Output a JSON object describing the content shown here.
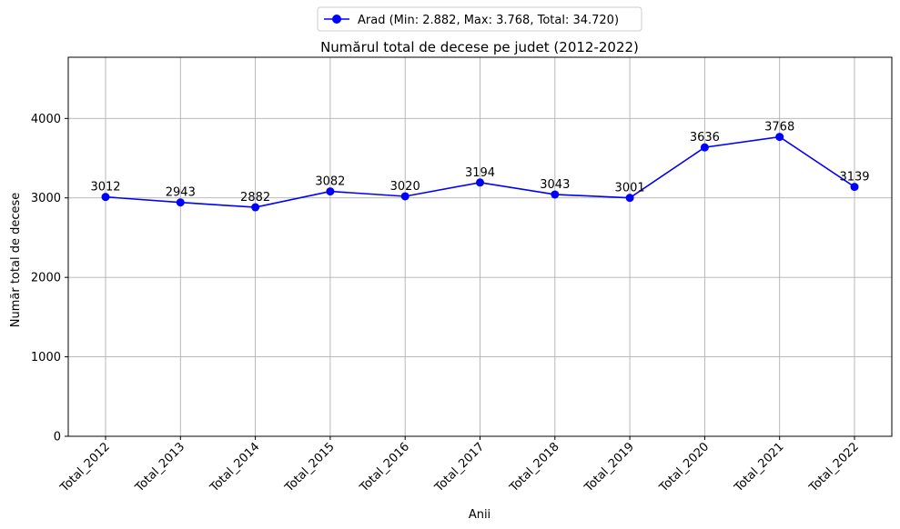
{
  "chart_data": {
    "type": "line",
    "title": "Numărul total de decese pe judet (2012-2022)",
    "xlabel": "Anii",
    "ylabel": "Număr total de decese",
    "categories": [
      "Total_2012",
      "Total_2013",
      "Total_2014",
      "Total_2015",
      "Total_2016",
      "Total_2017",
      "Total_2018",
      "Total_2019",
      "Total_2020",
      "Total_2021",
      "Total_2022"
    ],
    "series": [
      {
        "name": "Arad (Min: 2.882, Max: 3.768, Total: 34.720)",
        "values": [
          3012,
          2943,
          2882,
          3082,
          3020,
          3194,
          3043,
          3001,
          3636,
          3768,
          3139
        ],
        "color": "#0000ff"
      }
    ],
    "ylim": [
      0,
      4770
    ],
    "yticks": [
      0,
      1000,
      2000,
      3000,
      4000
    ],
    "grid": true,
    "legend_position": "top-center",
    "data_labels": true
  }
}
